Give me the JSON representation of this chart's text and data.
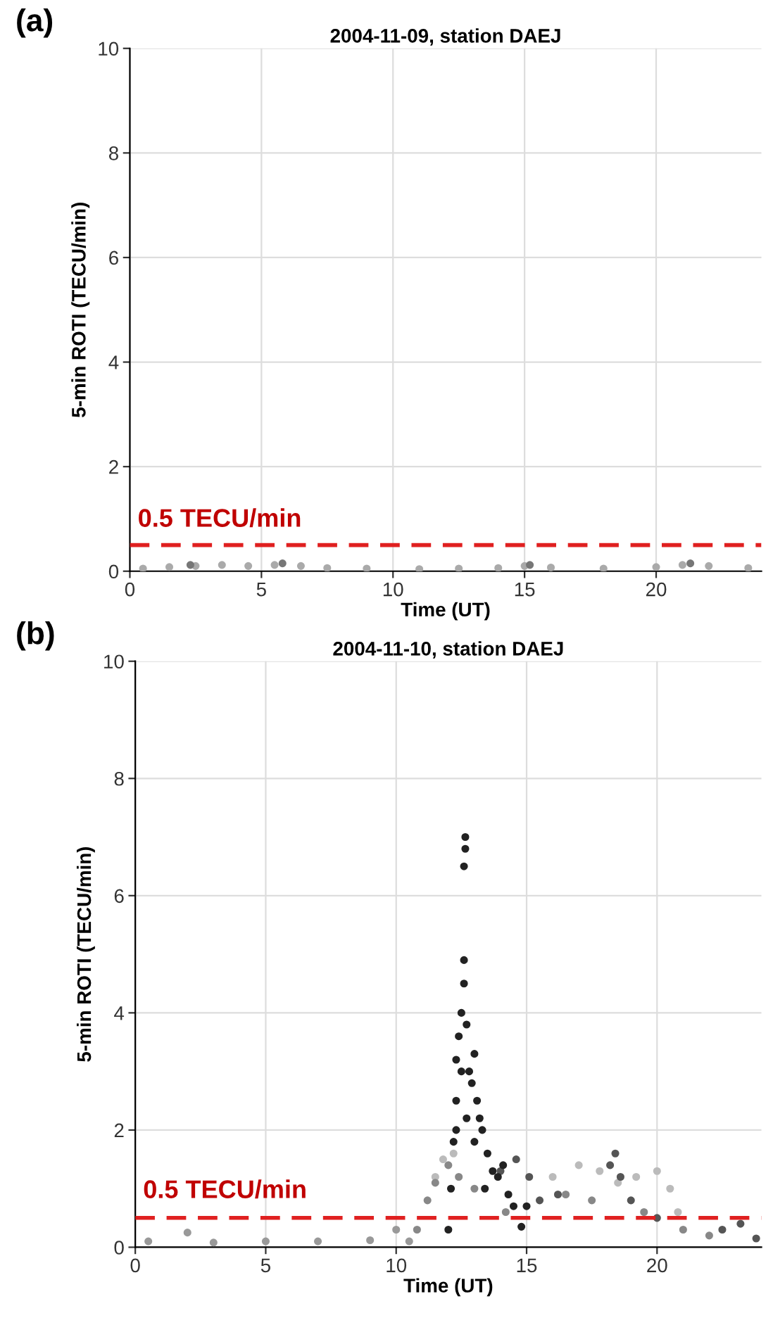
{
  "chart_data": [
    {
      "type": "scatter",
      "title": "2004-11-09, station DAEJ",
      "xlabel": "Time (UT)",
      "ylabel": "5-min ROTI (TECU/min)",
      "annotations": [
        "(a)"
      ],
      "xlim": [
        0,
        24
      ],
      "xticks": [
        0,
        5,
        10,
        15,
        20
      ],
      "ylim": [
        0,
        10
      ],
      "yticks": [
        0,
        2,
        4,
        6,
        8,
        10
      ],
      "grid": true,
      "marker": "circle",
      "ref_lines": [
        {
          "axis": "y",
          "value": 0.5,
          "label": "0.5 TECU/min",
          "color": "#e02020",
          "line_style": "dashed"
        }
      ],
      "series": [
        {
          "color": "#aaaaaa",
          "x": [
            0.5,
            1.5,
            2.5,
            3.5,
            4.5,
            5.5,
            6.5,
            7.5,
            9,
            11,
            12.5,
            14,
            15,
            16,
            18,
            20,
            21,
            22,
            23.5
          ],
          "values": [
            0.05,
            0.08,
            0.1,
            0.12,
            0.1,
            0.12,
            0.1,
            0.06,
            0.05,
            0.04,
            0.05,
            0.06,
            0.1,
            0.07,
            0.05,
            0.08,
            0.12,
            0.1,
            0.06
          ]
        },
        {
          "color": "#777777",
          "x": [
            2.3,
            5.8,
            15.2,
            21.3
          ],
          "values": [
            0.12,
            0.15,
            0.12,
            0.15
          ]
        }
      ]
    },
    {
      "type": "scatter",
      "title": "2004-11-10, station DAEJ",
      "xlabel": "Time (UT)",
      "ylabel": "5-min ROTI (TECU/min)",
      "annotations": [
        "(b)"
      ],
      "xlim": [
        0,
        24
      ],
      "xticks": [
        0,
        5,
        10,
        15,
        20
      ],
      "ylim": [
        0,
        10
      ],
      "yticks": [
        0,
        2,
        4,
        6,
        8,
        10
      ],
      "grid": true,
      "marker": "circle",
      "ref_lines": [
        {
          "axis": "y",
          "value": 0.5,
          "label": "0.5 TECU/min",
          "color": "#e02020",
          "line_style": "dashed"
        }
      ],
      "series": [
        {
          "color": "#999999",
          "x": [
            0.5,
            2,
            3,
            5,
            7,
            9,
            10,
            10.5
          ],
          "values": [
            0.1,
            0.25,
            0.08,
            0.1,
            0.1,
            0.12,
            0.3,
            0.1
          ]
        },
        {
          "color": "#bbbbbb",
          "x": [
            11.5,
            11.8,
            12.2,
            16.0,
            17.0,
            17.8,
            18.5,
            19.2,
            20.0,
            20.5,
            20.8
          ],
          "values": [
            1.2,
            1.5,
            1.6,
            1.2,
            1.4,
            1.3,
            1.1,
            1.2,
            1.3,
            1.0,
            0.6
          ]
        },
        {
          "color": "#888888",
          "x": [
            10.8,
            11.2,
            11.5,
            12.0,
            12.4,
            13.0,
            14.2,
            16.5,
            17.5,
            19.5,
            21.0,
            22.0
          ],
          "values": [
            0.3,
            0.8,
            1.1,
            1.4,
            1.2,
            1.0,
            0.6,
            0.9,
            0.8,
            0.6,
            0.3,
            0.2
          ]
        },
        {
          "color": "#555555",
          "x": [
            14,
            14.6,
            15.1,
            15.5,
            16.2,
            18.2,
            18.4,
            18.6,
            19,
            20,
            22.5,
            23.2,
            23.8
          ],
          "values": [
            1.3,
            1.5,
            1.2,
            0.8,
            0.9,
            1.4,
            1.6,
            1.2,
            0.8,
            0.5,
            0.3,
            0.4,
            0.15
          ]
        },
        {
          "color": "#222222",
          "x": [
            12.0,
            12.1,
            12.2,
            12.3,
            12.3,
            12.4,
            12.5,
            12.6,
            12.6,
            12.6,
            12.65,
            12.65,
            12.7,
            12.8,
            12.9,
            13.0,
            13.1,
            13.2,
            13.3,
            13.5,
            13.7,
            13.9,
            14.1,
            14.3,
            14.5,
            12.3,
            12.5,
            12.7,
            13.0,
            13.4,
            14.8,
            15.0
          ],
          "values": [
            0.3,
            1.0,
            1.8,
            2.5,
            3.2,
            3.6,
            4.0,
            4.5,
            4.9,
            6.5,
            6.8,
            7.0,
            3.8,
            3.0,
            2.8,
            3.3,
            2.5,
            2.2,
            2.0,
            1.6,
            1.3,
            1.2,
            1.4,
            0.9,
            0.7,
            2.0,
            3.0,
            2.2,
            1.8,
            1.0,
            0.35,
            0.7
          ]
        }
      ]
    }
  ]
}
